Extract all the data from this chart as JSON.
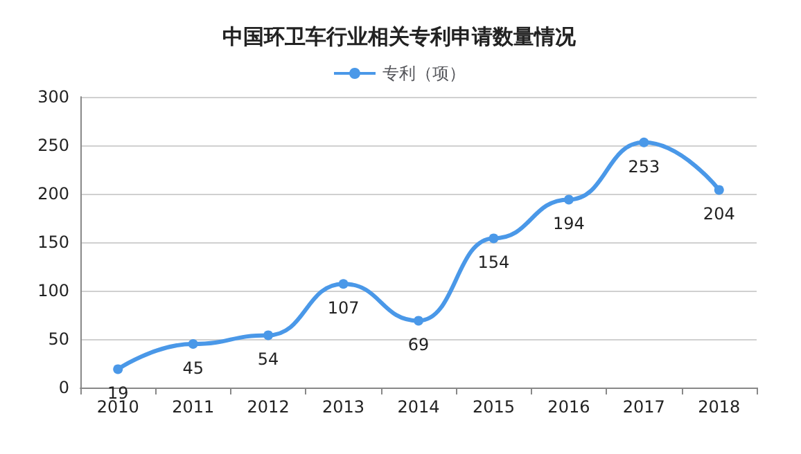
{
  "chart_data": {
    "type": "line",
    "title": "中国环卫车行业相关专利申请数量情况",
    "categories": [
      "2010",
      "2011",
      "2012",
      "2013",
      "2014",
      "2015",
      "2016",
      "2017",
      "2018"
    ],
    "series": [
      {
        "name": "专利（项）",
        "color": "#4a98e8",
        "values": [
          19,
          45,
          54,
          107,
          69,
          154,
          194,
          253,
          204
        ]
      }
    ],
    "ylim": [
      0,
      300
    ],
    "yticks": [
      0,
      50,
      100,
      150,
      200,
      250,
      300
    ],
    "grid": "y",
    "legend": "top",
    "marker": "circle",
    "data_labels": true
  }
}
